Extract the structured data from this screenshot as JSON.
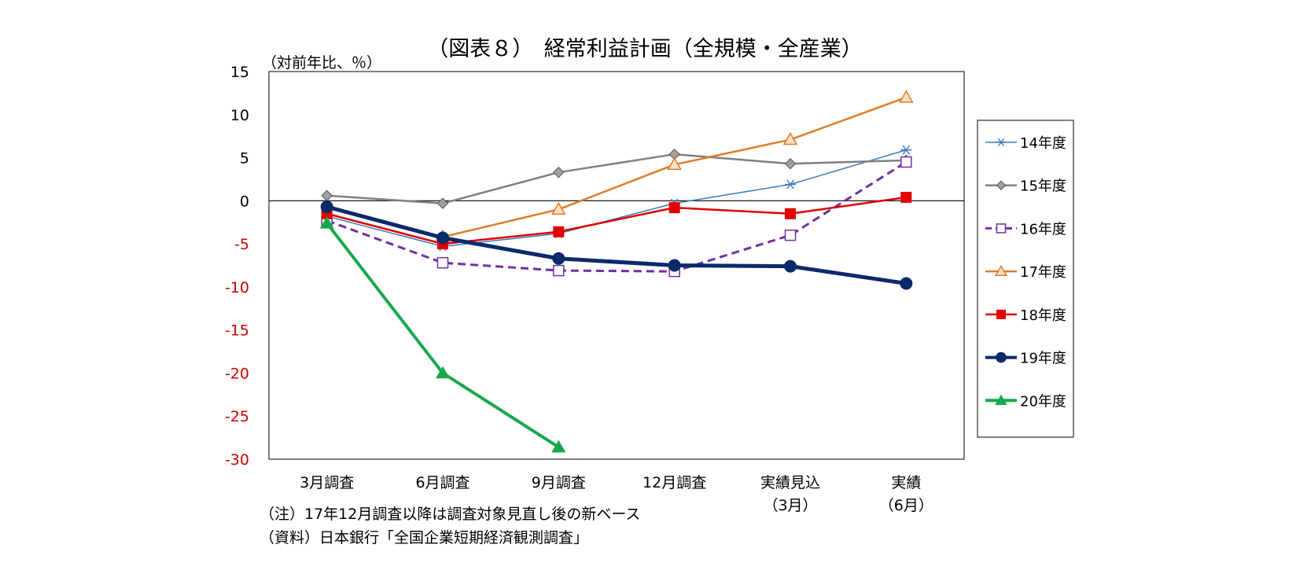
{
  "chart_data": {
    "type": "line",
    "title": "（図表８）　経常利益計画（全規模・全産業）",
    "ylabel": "（対前年比、％）",
    "ylim": [
      -30,
      15
    ],
    "yticks": [
      "15",
      "10",
      "5",
      "0",
      "-5",
      "-10",
      "-15",
      "-20",
      "-25",
      "-30"
    ],
    "negative_tick_color": "#cc0000",
    "categories": [
      "3月調査",
      "6月調査",
      "9月調査",
      "12月調査",
      "実績見込",
      "実績"
    ],
    "category_sublabels": [
      "",
      "",
      "",
      "",
      "（3月）",
      "（6月）"
    ],
    "legend_position": "right",
    "grid": false,
    "series": [
      {
        "name": "14年度",
        "color": "#3a7abf",
        "marker": "asterisk",
        "dash": false,
        "width": 1.5,
        "values": [
          -1.8,
          -5.3,
          -3.8,
          -0.3,
          1.9,
          5.9
        ]
      },
      {
        "name": "15年度",
        "color": "#808080",
        "marker": "diamond",
        "dash": false,
        "width": 2.5,
        "values": [
          0.6,
          -0.3,
          3.3,
          5.4,
          4.3,
          4.7
        ]
      },
      {
        "name": "16年度",
        "color": "#7030a0",
        "marker": "open-square",
        "dash": true,
        "width": 3,
        "values": [
          -2.3,
          -7.2,
          -8.1,
          -8.2,
          -4.0,
          4.5
        ]
      },
      {
        "name": "17年度",
        "color": "#e07b28",
        "marker": "open-triangle",
        "dash": false,
        "width": 2.5,
        "values": [
          null,
          -4.2,
          -1.0,
          4.2,
          7.1,
          12.0
        ]
      },
      {
        "name": "18年度",
        "color": "#e00000",
        "marker": "filled-square",
        "dash": false,
        "width": 2.5,
        "values": [
          -1.5,
          -5.0,
          -3.6,
          -0.8,
          -1.5,
          0.4
        ]
      },
      {
        "name": "19年度",
        "color": "#0a2a6a",
        "marker": "circle",
        "dash": false,
        "width": 5,
        "values": [
          -0.7,
          -4.3,
          -6.7,
          -7.5,
          -7.6,
          -9.6
        ]
      },
      {
        "name": "20年度",
        "color": "#18a84c",
        "marker": "filled-triangle",
        "dash": false,
        "width": 4,
        "values": [
          -2.6,
          -20.0,
          -28.6,
          null,
          null,
          null
        ]
      }
    ]
  },
  "notes": [
    "（注）17年12月調査以降は調査対象見直し後の新ベース",
    "（資料）日本銀行「全国企業短期経済観測調査」"
  ]
}
